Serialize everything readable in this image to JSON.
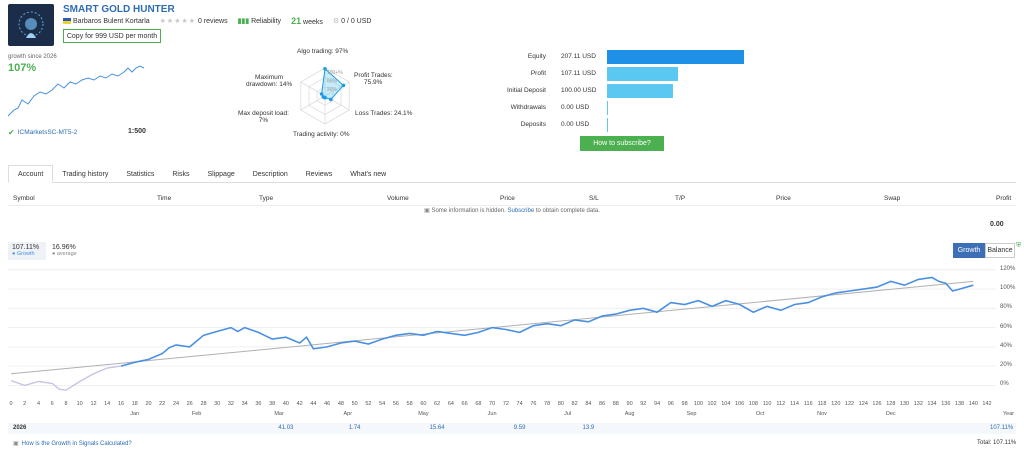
{
  "header": {
    "title": "SMART GOLD HUNTER",
    "author": "Barbaros Bulent Kortarla",
    "reviews": "0 reviews",
    "reliability_label": "Reliability",
    "weeks_value": "21",
    "weeks_label": "weeks",
    "subscribers": "0 / 0 USD",
    "copy_button": "Copy for 999 USD per month"
  },
  "mini": {
    "growth_since": "growth since 2026",
    "growth_value": "107%",
    "broker": "ICMarketsSC-MT5-2",
    "leverage": "1:500"
  },
  "radar": {
    "algo": "Algo trading: 97%",
    "profit_trades_1": "Profit Trades:",
    "profit_trades_2": "75.9%",
    "loss_trades": "Loss Trades: 24.1%",
    "activity": "Trading activity: 0%",
    "deposit_load_1": "Max deposit load:",
    "deposit_load_2": "7%",
    "drawdown_1": "Maximum",
    "drawdown_2": "drawdown: 14%",
    "ring_100": "100+%",
    "ring_60": "60%",
    "ring_20": "20%",
    "values": {
      "algo": 97,
      "profit": 75.9,
      "loss": 24.1,
      "activity": 0,
      "load": 7,
      "drawdown": 14
    }
  },
  "equity": {
    "rows": [
      {
        "label": "Equity",
        "value": "207.11 USD",
        "amount": 207.11
      },
      {
        "label": "Profit",
        "value": "107.11 USD",
        "amount": 107.11
      },
      {
        "label": "Initial Deposit",
        "value": "100.00 USD",
        "amount": 100
      },
      {
        "label": "Withdrawals",
        "value": "0.00 USD",
        "amount": 0
      },
      {
        "label": "Deposits",
        "value": "0.00 USD",
        "amount": 0
      }
    ],
    "subscribe_button": "How to subscribe?",
    "bar_colors": [
      "#1e90e6",
      "#5bc8f2",
      "#5bc8f2",
      "#5bc8f2",
      "#5bc8f2"
    ]
  },
  "tabs": [
    "Account",
    "Trading history",
    "Statistics",
    "Risks",
    "Slippage",
    "Description",
    "Reviews",
    "What's new"
  ],
  "table": {
    "headers": [
      "Symbol",
      "Time",
      "Type",
      "Volume",
      "Price",
      "S/L",
      "T/P",
      "Price",
      "Swap",
      "Profit"
    ],
    "hidden_note_pre": "Some information is hidden.",
    "hidden_note_link": "Subscribe",
    "hidden_note_post": "to obtain complete data.",
    "profit_total": "0.00"
  },
  "chart_meta": {
    "growth_pct": "107.11%",
    "growth_label": "Growth",
    "average_pct": "16.96%",
    "average_label": "average",
    "btn_growth": "Growth",
    "btn_balance": "Balance",
    "year": "2026",
    "year_label": "Year",
    "footer_link": "How is the Growth in Signals Calculated?",
    "total": "Total: 107.11%",
    "colors": {
      "growth": "#4a90e2",
      "trend": "#b0b0b0",
      "pre": "#c9c3e0"
    }
  },
  "chart_data": {
    "type": "line",
    "ylim": [
      -10,
      125
    ],
    "y_ticks": [
      "120%",
      "100%",
      "80%",
      "60%",
      "40%",
      "20%",
      "0%"
    ],
    "y_tick_values": [
      120,
      100,
      80,
      60,
      40,
      20,
      0
    ],
    "x_ticks": [
      "0",
      "2",
      "4",
      "6",
      "8",
      "10",
      "12",
      "14",
      "16",
      "18",
      "20",
      "22",
      "24",
      "26",
      "28",
      "30",
      "32",
      "34",
      "36",
      "38",
      "40",
      "42",
      "44",
      "46",
      "48",
      "50",
      "52",
      "54",
      "56",
      "58",
      "60",
      "62",
      "64",
      "66",
      "68",
      "70",
      "72",
      "74",
      "76",
      "78",
      "80",
      "82",
      "84",
      "86",
      "88",
      "90",
      "92",
      "94",
      "96",
      "98",
      "100",
      "102",
      "104",
      "106",
      "108",
      "110",
      "112",
      "114",
      "116",
      "118",
      "120",
      "122",
      "124",
      "126",
      "128",
      "130",
      "132",
      "134",
      "136",
      "138",
      "140",
      "142"
    ],
    "months": [
      {
        "label": "Jan",
        "x": 18
      },
      {
        "label": "Feb",
        "x": 27
      },
      {
        "label": "Mar",
        "x": 39
      },
      {
        "label": "Apr",
        "x": 49
      },
      {
        "label": "May",
        "x": 60
      },
      {
        "label": "Jun",
        "x": 70
      },
      {
        "label": "Jul",
        "x": 81
      },
      {
        "label": "Aug",
        "x": 90
      },
      {
        "label": "Sep",
        "x": 99
      },
      {
        "label": "Oct",
        "x": 109
      },
      {
        "label": "Nov",
        "x": 118
      },
      {
        "label": "Dec",
        "x": 128
      }
    ],
    "month_values": [
      {
        "value": "41.03",
        "x": 40
      },
      {
        "value": "1.74",
        "x": 50
      },
      {
        "value": "15.64",
        "x": 62
      },
      {
        "value": "9.59",
        "x": 74
      },
      {
        "value": "13.9",
        "x": 84
      }
    ],
    "series": [
      {
        "values": [
          [
            0,
            5
          ],
          [
            2,
            0
          ],
          [
            4,
            4
          ],
          [
            6,
            2
          ],
          [
            7,
            -4
          ],
          [
            8,
            -5
          ],
          [
            10,
            4
          ],
          [
            12,
            12
          ],
          [
            14,
            18
          ],
          [
            16,
            20
          ]
        ]
      },
      {
        "name": "Growth",
        "values": [
          [
            16,
            20
          ],
          [
            18,
            24
          ],
          [
            20,
            27
          ],
          [
            22,
            33
          ],
          [
            23,
            39
          ],
          [
            24,
            42
          ],
          [
            26,
            40
          ],
          [
            28,
            52
          ],
          [
            30,
            56
          ],
          [
            32,
            60
          ],
          [
            33,
            56
          ],
          [
            34,
            60
          ],
          [
            36,
            55
          ],
          [
            38,
            48
          ],
          [
            40,
            50
          ],
          [
            42,
            44
          ],
          [
            43,
            50
          ],
          [
            44,
            38
          ],
          [
            46,
            40
          ],
          [
            48,
            44
          ],
          [
            50,
            46
          ],
          [
            52,
            43
          ],
          [
            54,
            48
          ],
          [
            56,
            52
          ],
          [
            58,
            54
          ],
          [
            60,
            52
          ],
          [
            62,
            56
          ],
          [
            64,
            54
          ],
          [
            66,
            52
          ],
          [
            68,
            55
          ],
          [
            70,
            60
          ],
          [
            72,
            58
          ],
          [
            74,
            55
          ],
          [
            76,
            62
          ],
          [
            78,
            64
          ],
          [
            80,
            62
          ],
          [
            82,
            68
          ],
          [
            84,
            66
          ],
          [
            86,
            72
          ],
          [
            88,
            74
          ],
          [
            90,
            78
          ],
          [
            92,
            80
          ],
          [
            94,
            76
          ],
          [
            96,
            86
          ],
          [
            98,
            84
          ],
          [
            100,
            88
          ],
          [
            102,
            82
          ],
          [
            104,
            88
          ],
          [
            106,
            84
          ],
          [
            108,
            76
          ],
          [
            110,
            82
          ],
          [
            112,
            78
          ],
          [
            114,
            84
          ],
          [
            116,
            86
          ],
          [
            118,
            92
          ],
          [
            120,
            96
          ],
          [
            122,
            98
          ],
          [
            124,
            100
          ],
          [
            126,
            102
          ],
          [
            128,
            108
          ],
          [
            130,
            104
          ],
          [
            132,
            110
          ],
          [
            134,
            112
          ],
          [
            135,
            108
          ],
          [
            136,
            106
          ],
          [
            137,
            98
          ],
          [
            138,
            100
          ],
          [
            140,
            104
          ]
        ]
      },
      {
        "name": "trend",
        "values": [
          [
            0,
            12
          ],
          [
            140,
            108
          ]
        ]
      }
    ]
  }
}
